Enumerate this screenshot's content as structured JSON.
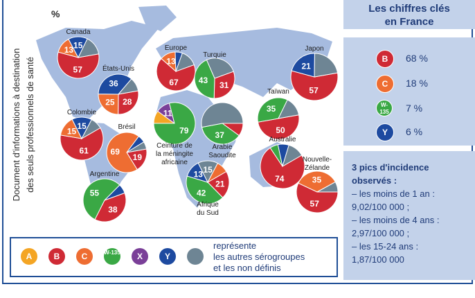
{
  "vertical_text": [
    "Document d'informations à destination",
    "des seuls professionnels de santé"
  ],
  "unit": "%",
  "colors": {
    "A": "#f4a524",
    "B": "#cf2a35",
    "C": "#ee6d32",
    "W135": "#3aa845",
    "X": "#7a3f98",
    "Y": "#1d4aa0",
    "other": "#6e8594",
    "map": "#a6bbdf"
  },
  "chart_data": {
    "type": "pie",
    "title": "",
    "series_names": [
      "A",
      "B",
      "C",
      "W-135",
      "X",
      "Y",
      "autres"
    ],
    "regions": [
      {
        "label": "Canada",
        "values": {
          "B": 57,
          "C": 13,
          "Y": 15,
          "other": 15
        },
        "shown": [
          "57",
          "13",
          "15"
        ]
      },
      {
        "label": "Europe",
        "values": {
          "B": 67,
          "C": 13,
          "Y": 6,
          "other": 14
        },
        "shown": [
          "67",
          "13"
        ]
      },
      {
        "label": "Turquie",
        "values": {
          "B": 31,
          "W135": 43,
          "other": 26
        },
        "shown": [
          "31",
          "43"
        ]
      },
      {
        "label": "Japon",
        "values": {
          "B": 57,
          "Y": 21,
          "other": 22
        },
        "shown": [
          "57",
          "21"
        ]
      },
      {
        "label": "États-Unis",
        "values": {
          "B": 28,
          "C": 25,
          "Y": 36,
          "other": 11
        },
        "shown": [
          "28",
          "25",
          "36"
        ]
      },
      {
        "label": "Colombie",
        "values": {
          "B": 61,
          "C": 15,
          "Y": 15,
          "other": 9
        },
        "shown": [
          "61",
          "15",
          "15"
        ]
      },
      {
        "label": "Brésil",
        "values": {
          "B": 19,
          "C": 69,
          "Y": 6,
          "other": 6
        },
        "shown": [
          "19",
          "69"
        ]
      },
      {
        "label": "Ceinture de la méningite africaine",
        "values": {
          "A": 10,
          "X": 11,
          "W135": 79
        },
        "shown": [
          "11",
          "79"
        ]
      },
      {
        "label": "Arabie Saoudite",
        "values": {
          "B": 10,
          "W135": 37,
          "other": 53
        },
        "shown": [
          "37"
        ]
      },
      {
        "label": "Taïwan",
        "values": {
          "B": 50,
          "W135": 35,
          "other": 15
        },
        "shown": [
          "50",
          "35"
        ]
      },
      {
        "label": "Australie",
        "values": {
          "B": 74,
          "W135": 6,
          "Y": 8,
          "other": 12
        },
        "shown": [
          "74"
        ]
      },
      {
        "label": "Afrique du Sud",
        "values": {
          "B": 21,
          "W135": 42,
          "Y": 13,
          "other": 15,
          "C": 9
        },
        "shown": [
          "21",
          "42",
          "13",
          "15"
        ]
      },
      {
        "label": "Argentine",
        "values": {
          "B": 38,
          "W135": 55,
          "Y": 7
        },
        "shown": [
          "38",
          "55"
        ]
      },
      {
        "label": "Nouvelle-Zélande",
        "values": {
          "B": 57,
          "C": 35,
          "other": 8
        },
        "shown": [
          "57",
          "35"
        ]
      }
    ]
  },
  "key_figures": {
    "title_line1": "Les chiffres clés",
    "title_line2": "en France",
    "items": [
      {
        "serogroup": "B",
        "value": "68 %"
      },
      {
        "serogroup": "C",
        "value": "18 %"
      },
      {
        "serogroup": "W-135",
        "value": "7 %"
      },
      {
        "serogroup": "Y",
        "value": "6 %"
      }
    ]
  },
  "peaks": {
    "title1": "3 pics d'incidence",
    "title2": "observés :",
    "lines": [
      "– les moins de 1 an :",
      "9,02/100 000 ;",
      "– les moins de 4 ans :",
      "2,97/100 000 ;",
      "– les 15-24 ans :",
      "1,87/100 000"
    ]
  },
  "legend": {
    "items": [
      "A",
      "B",
      "C",
      "W-135",
      "X",
      "Y"
    ],
    "text_line1": "représente",
    "text_line2": "les autres sérogroupes",
    "text_line3": "et les non définis"
  }
}
